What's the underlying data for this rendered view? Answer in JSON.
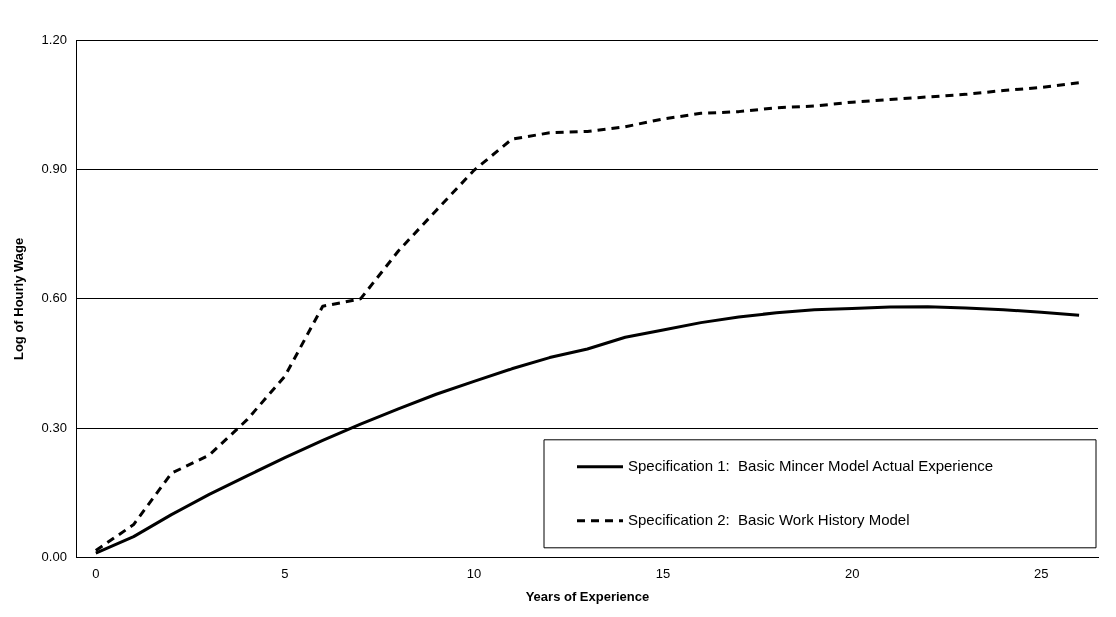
{
  "chart_data": {
    "type": "line",
    "xlabel": "Years of Experience",
    "ylabel": "Log of Hourly Wage",
    "x": [
      0,
      1,
      2,
      3,
      4,
      5,
      6,
      7,
      8,
      9,
      10,
      11,
      12,
      13,
      14,
      15,
      16,
      17,
      18,
      19,
      20,
      21,
      22,
      23,
      24,
      25,
      26
    ],
    "series": [
      {
        "name": "Specification 1:  Basic Mincer Model Actual Experience",
        "color": "#000000",
        "line_style": "solid",
        "values": [
          0.011,
          0.049,
          0.1,
          0.147,
          0.19,
          0.232,
          0.272,
          0.31,
          0.345,
          0.379,
          0.409,
          0.438,
          0.464,
          0.484,
          0.511,
          0.528,
          0.545,
          0.558,
          0.568,
          0.575,
          0.578,
          0.581,
          0.582,
          0.579,
          0.575,
          0.569,
          0.562
        ]
      },
      {
        "name": "Specification 2:  Basic Work History Model",
        "color": "#000000",
        "line_style": "dashed",
        "values": [
          0.017,
          0.077,
          0.196,
          0.238,
          0.32,
          0.421,
          0.583,
          0.6,
          0.711,
          0.805,
          0.898,
          0.97,
          0.985,
          0.988,
          0.999,
          1.017,
          1.03,
          1.034,
          1.043,
          1.047,
          1.056,
          1.062,
          1.068,
          1.074,
          1.083,
          1.09,
          1.101
        ]
      }
    ],
    "xlim": [
      -0.5,
      26.5
    ],
    "xticks": [
      0,
      5,
      10,
      15,
      20,
      25
    ],
    "ylim": [
      0,
      1.2
    ],
    "yticks": [
      {
        "value": 0,
        "label": "0.00"
      },
      {
        "value": 0.3,
        "label": "0.30"
      },
      {
        "value": 0.6,
        "label": "0.60"
      },
      {
        "value": 0.9,
        "label": "0.90"
      },
      {
        "value": 1.2,
        "label": "1.20"
      }
    ],
    "grid": "y",
    "legend": "bottom right",
    "marker": "none"
  }
}
